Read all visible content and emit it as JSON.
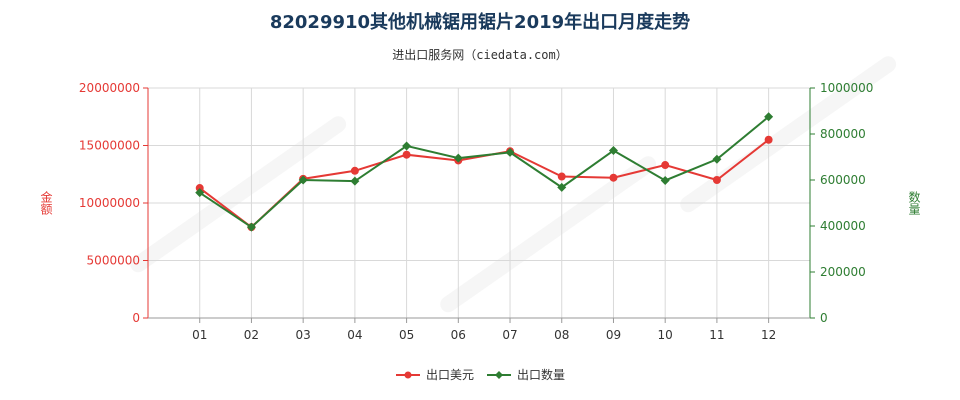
{
  "chart_data": {
    "type": "line",
    "title": "82029910其他机械锯用锯片2019年出口月度走势",
    "subtitle": "进出口服务网（ciedata.com）",
    "categories": [
      "01",
      "02",
      "03",
      "04",
      "05",
      "06",
      "07",
      "08",
      "09",
      "10",
      "11",
      "12"
    ],
    "y_left": {
      "label": "金额",
      "ylim": [
        0,
        20000000
      ],
      "ticks": [
        "0",
        "5000000",
        "10000000",
        "15000000",
        "20000000"
      ],
      "tick_values": [
        0,
        5000000,
        10000000,
        15000000,
        20000000
      ]
    },
    "y_right": {
      "label": "数量",
      "ylim": [
        0,
        1000000
      ],
      "ticks": [
        "0",
        "200000",
        "400000",
        "600000",
        "800000",
        "1000000"
      ],
      "tick_values": [
        0,
        200000,
        400000,
        600000,
        800000,
        1000000
      ]
    },
    "series": [
      {
        "name": "出口美元",
        "axis": "left",
        "color": "#e53935",
        "values": [
          11300000,
          7900000,
          12100000,
          12800000,
          14200000,
          13700000,
          14500000,
          12300000,
          12200000,
          13300000,
          12000000,
          15500000
        ]
      },
      {
        "name": "出口数量",
        "axis": "right",
        "color": "#2e7d32",
        "values": [
          545000,
          395000,
          600000,
          595000,
          748000,
          695000,
          720000,
          568000,
          728000,
          598000,
          690000,
          875000
        ]
      }
    ],
    "grid": true,
    "legend_position": "bottom-center"
  }
}
